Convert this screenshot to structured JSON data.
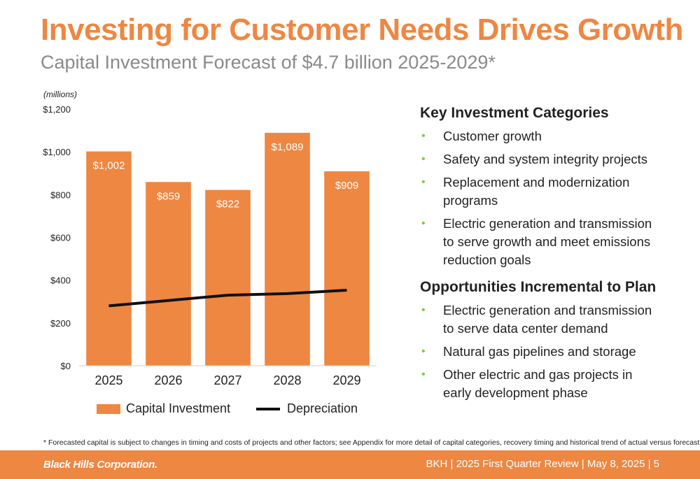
{
  "header": {
    "title": "Investing for Customer Needs Drives Growth",
    "subtitle": "Capital Investment Forecast of $4.7 billion 2025-2029*"
  },
  "chart_data": {
    "type": "bar",
    "unit_label": "(millions)",
    "categories": [
      "2025",
      "2026",
      "2027",
      "2028",
      "2029"
    ],
    "series": [
      {
        "name": "Capital Investment",
        "type": "bar",
        "color": "#ee8742",
        "values": [
          1002,
          859,
          822,
          1089,
          909
        ],
        "labels": [
          "$1,002",
          "$859",
          "$822",
          "$1,089",
          "$909"
        ]
      },
      {
        "name": "Depreciation",
        "type": "line",
        "color": "#111111",
        "values": [
          280,
          305,
          330,
          337,
          353
        ]
      }
    ],
    "ylim": [
      0,
      1200
    ],
    "yticks": [
      0,
      200,
      400,
      600,
      800,
      1000,
      1200
    ],
    "ytick_labels": [
      "$0",
      "$200",
      "$400",
      "$600",
      "$800",
      "$1,000",
      "$1,200"
    ],
    "grid": false,
    "legend_position": "bottom"
  },
  "legend": {
    "capital": "Capital Investment",
    "depreciation": "Depreciation"
  },
  "panel": {
    "heading1": "Key Investment Categories",
    "items1": [
      "Customer growth",
      "Safety and system integrity projects",
      "Replacement and modernization programs",
      "Electric generation and transmission to serve growth and meet emissions reduction goals"
    ],
    "heading2": "Opportunities Incremental to Plan",
    "items2": [
      "Electric generation and transmission to serve data center demand",
      "Natural gas pipelines and storage",
      "Other electric and gas projects in early development phase"
    ],
    "bullet": "•"
  },
  "footnote": "* Forecasted capital is subject to changes in timing and costs of projects and other factors; see Appendix for more detail of capital categories, recovery timing and historical trend of actual versus forecast",
  "footer": {
    "logo": "Black Hills Corporation.",
    "right": "BKH  |  2025 First Quarter Review  |  May 8, 2025  |  5"
  },
  "colors": {
    "accent": "#ee8742",
    "bullet": "#8dc63f",
    "footer": "#ee8742"
  }
}
